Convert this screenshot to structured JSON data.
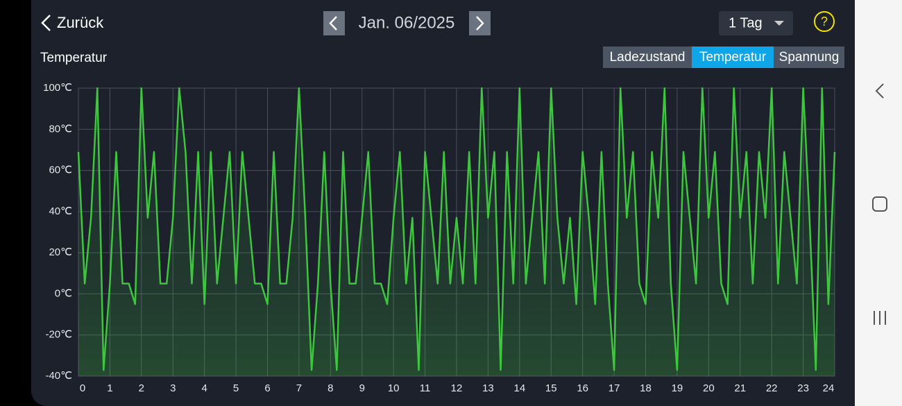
{
  "header": {
    "back": "Zurück",
    "date": "Jan. 06/2025",
    "range": "1 Tag",
    "help": "?"
  },
  "tabs": {
    "items": [
      "Ladezustand",
      "Temperatur",
      "Spannung"
    ],
    "active": 1
  },
  "chart_data": {
    "type": "line",
    "title": "Temperatur",
    "x": [
      0,
      0.2,
      0.4,
      0.6,
      0.8,
      1,
      1.2,
      1.4,
      1.6,
      1.8,
      2,
      2.2,
      2.4,
      2.6,
      2.8,
      3,
      3.2,
      3.4,
      3.6,
      3.8,
      4,
      4.2,
      4.4,
      4.6,
      4.8,
      5,
      5.2,
      5.4,
      5.6,
      5.8,
      6,
      6.2,
      6.4,
      6.6,
      6.8,
      7,
      7.2,
      7.4,
      7.6,
      7.8,
      8,
      8.2,
      8.4,
      8.6,
      8.8,
      9,
      9.2,
      9.4,
      9.6,
      9.8,
      10,
      10.2,
      10.4,
      10.6,
      10.8,
      11,
      11.2,
      11.4,
      11.6,
      11.8,
      12,
      12.2,
      12.4,
      12.6,
      12.8,
      13,
      13.2,
      13.4,
      13.6,
      13.8,
      14,
      14.2,
      14.4,
      14.6,
      14.8,
      15,
      15.2,
      15.4,
      15.6,
      15.8,
      16,
      16.2,
      16.4,
      16.6,
      16.8,
      17,
      17.2,
      17.4,
      17.6,
      17.8,
      18,
      18.2,
      18.4,
      18.6,
      18.8,
      19,
      19.2,
      19.4,
      19.6,
      19.8,
      20,
      20.2,
      20.4,
      20.6,
      20.8,
      21,
      21.2,
      21.4,
      21.6,
      21.8,
      22,
      22.2,
      22.4,
      22.6,
      22.8,
      23,
      23.2,
      23.4,
      23.6,
      23.8,
      24
    ],
    "series": [
      {
        "color": "#3ec63e",
        "values": [
          69,
          5,
          37,
          100,
          -37,
          5,
          69,
          5,
          5,
          -5,
          100,
          37,
          69,
          5,
          5,
          37,
          100,
          69,
          5,
          69,
          -5,
          69,
          5,
          37,
          69,
          5,
          69,
          37,
          5,
          5,
          -5,
          69,
          5,
          5,
          37,
          100,
          37,
          -37,
          5,
          69,
          5,
          -37,
          69,
          5,
          5,
          37,
          69,
          5,
          5,
          -5,
          37,
          69,
          5,
          37,
          -37,
          69,
          37,
          5,
          69,
          5,
          37,
          5,
          69,
          5,
          100,
          37,
          69,
          -37,
          69,
          5,
          100,
          5,
          37,
          69,
          5,
          100,
          37,
          5,
          37,
          -5,
          69,
          37,
          -5,
          69,
          5,
          -37,
          100,
          37,
          69,
          5,
          -5,
          69,
          37,
          100,
          5,
          -37,
          69,
          37,
          5,
          100,
          37,
          69,
          5,
          -5,
          100,
          37,
          69,
          5,
          69,
          37,
          100,
          5,
          69,
          37,
          5,
          100,
          37,
          -37,
          100,
          -5,
          69
        ]
      }
    ],
    "xlim": [
      0,
      24
    ],
    "xticks": [
      0,
      1,
      2,
      3,
      4,
      5,
      6,
      7,
      8,
      9,
      10,
      11,
      12,
      13,
      14,
      15,
      16,
      17,
      18,
      19,
      20,
      21,
      22,
      23,
      24
    ],
    "ylim": [
      -40,
      100
    ],
    "yticks": [
      {
        "value": -40,
        "label": "-40℃"
      },
      {
        "value": -20,
        "label": "-20℃"
      },
      {
        "value": 0,
        "label": "0℃"
      },
      {
        "value": 20,
        "label": "20℃"
      },
      {
        "value": 40,
        "label": "40℃"
      },
      {
        "value": 60,
        "label": "60℃"
      },
      {
        "value": 80,
        "label": "80℃"
      },
      {
        "value": 100,
        "label": "100℃"
      }
    ],
    "grid": true
  }
}
